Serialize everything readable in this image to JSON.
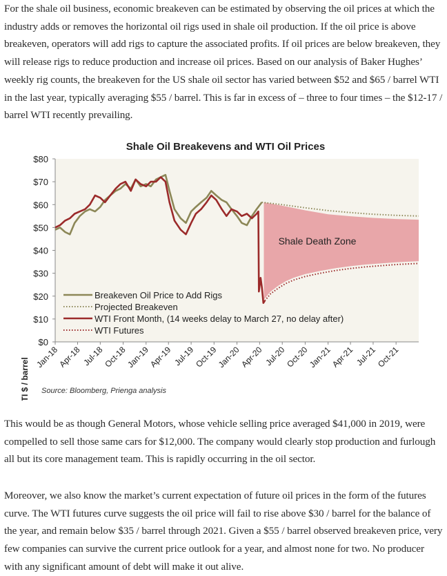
{
  "paragraphs": [
    "For the shale oil business, economic breakeven can be estimated by observing the oil prices at which the industry adds or removes the horizontal oil rigs used in shale oil production.  If the oil price is above breakeven, operators will add rigs to capture the associated profits.  If oil prices are below breakeven, they will release rigs to reduce production and increase oil prices.  Based on our analysis of Baker Hughes’ weekly rig counts, the breakeven for the US shale oil sector has varied between $52 and $65 / barrel WTI in the last year, typically averaging $55 / barrel.    This is far in excess of – three to four times – the $12-17 / barrel WTI recently prevailing.",
    "This would be as though General Motors, whose vehicle selling price averaged $41,000 in 2019, were compelled to sell those same cars for $12,000.  The company would clearly stop production and furlough all but its core management team.  This is rapidly occurring in the oil sector.",
    "Moreover, we also know the market’s current expectation of future oil prices in the form of the futures curve.  The WTI futures curve suggests the oil price will fail to rise above $30 / barrel for the balance of the year, and remain below $35 / barrel through 2021.  Given a $55 / barrel observed breakeven price, very few companies can survive the current price outlook for a year, and almost none for two.  No producer with any significant amount of debt will make it out alive."
  ],
  "chart_data": {
    "type": "line",
    "title": "Shale Oil Breakevens and WTI Oil Prices",
    "ylabel": "WTI $ / barrel",
    "xlabel": "",
    "ylim": [
      0,
      80
    ],
    "y_ticks": [
      "$0",
      "$10",
      "$20",
      "$30",
      "$40",
      "$50",
      "$60",
      "$70",
      "$80"
    ],
    "x_ticks": [
      "Jan-18",
      "Apr-18",
      "Jul-18",
      "Oct-18",
      "Jan-19",
      "Apr-19",
      "Jul-19",
      "Oct-19",
      "Jan-20",
      "Apr-20",
      "Jul-20",
      "Oct-20",
      "Jan-21",
      "Apr-21",
      "Jul-21",
      "Oct-21"
    ],
    "x_range": [
      "2018-01-01",
      "2021-12-31"
    ],
    "annotation": "Shale Death Zone",
    "source": "Source: Bloomberg, Prienga analysis",
    "legend_position": "bottom-left",
    "series": [
      {
        "name": "Breakeven Oil Price to Add Rigs",
        "color": "#8c8757",
        "style": "solid",
        "points": [
          [
            "2018-01-01",
            49
          ],
          [
            "2018-01-20",
            50
          ],
          [
            "2018-02-10",
            48
          ],
          [
            "2018-03-01",
            47
          ],
          [
            "2018-03-20",
            52
          ],
          [
            "2018-04-10",
            55
          ],
          [
            "2018-05-01",
            57
          ],
          [
            "2018-05-20",
            58
          ],
          [
            "2018-06-10",
            57
          ],
          [
            "2018-07-01",
            59
          ],
          [
            "2018-07-20",
            62
          ],
          [
            "2018-08-10",
            64
          ],
          [
            "2018-09-01",
            66
          ],
          [
            "2018-09-20",
            67
          ],
          [
            "2018-10-10",
            69
          ],
          [
            "2018-11-01",
            67
          ],
          [
            "2018-11-20",
            71
          ],
          [
            "2018-12-10",
            68
          ],
          [
            "2019-01-01",
            69
          ],
          [
            "2019-01-20",
            68
          ],
          [
            "2019-02-10",
            71
          ],
          [
            "2019-03-01",
            72
          ],
          [
            "2019-03-20",
            73
          ],
          [
            "2019-04-05",
            66
          ],
          [
            "2019-04-25",
            58
          ],
          [
            "2019-05-20",
            54
          ],
          [
            "2019-06-10",
            52
          ],
          [
            "2019-07-01",
            57
          ],
          [
            "2019-07-20",
            59
          ],
          [
            "2019-08-10",
            61
          ],
          [
            "2019-09-01",
            63
          ],
          [
            "2019-09-20",
            66
          ],
          [
            "2019-10-10",
            64
          ],
          [
            "2019-11-01",
            62
          ],
          [
            "2019-11-20",
            61
          ],
          [
            "2019-12-10",
            58
          ],
          [
            "2020-01-01",
            55
          ],
          [
            "2020-01-20",
            52
          ],
          [
            "2020-02-10",
            51
          ],
          [
            "2020-03-01",
            55
          ],
          [
            "2020-03-20",
            58
          ],
          [
            "2020-04-10",
            61
          ]
        ]
      },
      {
        "name": "Projected Breakeven",
        "color": "#8c8757",
        "style": "dotted",
        "points": [
          [
            "2020-04-10",
            61
          ],
          [
            "2020-07-01",
            60
          ],
          [
            "2020-10-01",
            58.6
          ],
          [
            "2021-01-01",
            57.4
          ],
          [
            "2021-04-01",
            56.5
          ],
          [
            "2021-07-01",
            55.8
          ],
          [
            "2021-10-01",
            55.3
          ],
          [
            "2021-12-31",
            55.0
          ]
        ]
      },
      {
        "name": "WTI Front Month, (14 weeks delay to March 27, no delay after)",
        "color": "#9b2a2a",
        "style": "solid",
        "points": [
          [
            "2018-01-01",
            50
          ],
          [
            "2018-01-20",
            51
          ],
          [
            "2018-02-10",
            53
          ],
          [
            "2018-03-01",
            54
          ],
          [
            "2018-03-20",
            56
          ],
          [
            "2018-04-10",
            57
          ],
          [
            "2018-05-01",
            58
          ],
          [
            "2018-05-20",
            60
          ],
          [
            "2018-06-10",
            64
          ],
          [
            "2018-07-01",
            63
          ],
          [
            "2018-07-20",
            61
          ],
          [
            "2018-08-10",
            64
          ],
          [
            "2018-09-01",
            67
          ],
          [
            "2018-09-20",
            69
          ],
          [
            "2018-10-10",
            70
          ],
          [
            "2018-11-01",
            66
          ],
          [
            "2018-11-20",
            71
          ],
          [
            "2018-12-10",
            69
          ],
          [
            "2019-01-01",
            68
          ],
          [
            "2019-01-20",
            70
          ],
          [
            "2019-02-10",
            70
          ],
          [
            "2019-03-01",
            72
          ],
          [
            "2019-03-20",
            70
          ],
          [
            "2019-04-05",
            61
          ],
          [
            "2019-04-25",
            53
          ],
          [
            "2019-05-20",
            49
          ],
          [
            "2019-06-10",
            47
          ],
          [
            "2019-07-01",
            52
          ],
          [
            "2019-07-20",
            56
          ],
          [
            "2019-08-10",
            58
          ],
          [
            "2019-09-01",
            61
          ],
          [
            "2019-09-20",
            64
          ],
          [
            "2019-10-10",
            62
          ],
          [
            "2019-11-01",
            58
          ],
          [
            "2019-11-20",
            55
          ],
          [
            "2019-12-10",
            58
          ],
          [
            "2020-01-01",
            57
          ],
          [
            "2020-01-20",
            55
          ],
          [
            "2020-02-10",
            56
          ],
          [
            "2020-03-01",
            54
          ],
          [
            "2020-03-20",
            56
          ],
          [
            "2020-03-27",
            57
          ],
          [
            "2020-03-29",
            22
          ],
          [
            "2020-04-05",
            28
          ],
          [
            "2020-04-10",
            24
          ],
          [
            "2020-04-16",
            17
          ],
          [
            "2020-04-22",
            18
          ]
        ]
      },
      {
        "name": "WTI Futures",
        "color": "#9b2a2a",
        "style": "dotted",
        "points": [
          [
            "2020-04-22",
            18
          ],
          [
            "2020-05-15",
            21
          ],
          [
            "2020-06-15",
            23.5
          ],
          [
            "2020-07-15",
            25.5
          ],
          [
            "2020-08-15",
            27
          ],
          [
            "2020-10-01",
            28.6
          ],
          [
            "2020-12-01",
            30
          ],
          [
            "2021-02-01",
            31.2
          ],
          [
            "2021-04-01",
            32.1
          ],
          [
            "2021-06-01",
            32.8
          ],
          [
            "2021-08-01",
            33.3
          ],
          [
            "2021-10-01",
            33.8
          ],
          [
            "2021-12-31",
            34.3
          ]
        ]
      }
    ],
    "shaded_zone": {
      "fill": "#e8a6a9",
      "start": "2020-04-18",
      "upper": [
        [
          "2020-04-18",
          61
        ],
        [
          "2020-07-01",
          59.5
        ],
        [
          "2020-10-01",
          57.5
        ],
        [
          "2021-01-01",
          55.8
        ],
        [
          "2021-04-01",
          54.9
        ],
        [
          "2021-07-01",
          54.2
        ],
        [
          "2021-10-01",
          53.7
        ],
        [
          "2021-12-31",
          53.4
        ]
      ],
      "lower": [
        [
          "2020-04-18",
          18.5
        ],
        [
          "2020-05-15",
          22
        ],
        [
          "2020-06-15",
          24.5
        ],
        [
          "2020-07-15",
          26.5
        ],
        [
          "2020-08-15",
          28
        ],
        [
          "2020-10-01",
          29.6
        ],
        [
          "2020-12-01",
          31
        ],
        [
          "2021-02-01",
          32.2
        ],
        [
          "2021-04-01",
          33.1
        ],
        [
          "2021-06-01",
          33.8
        ],
        [
          "2021-08-01",
          34.3
        ],
        [
          "2021-10-01",
          34.8
        ],
        [
          "2021-12-31",
          35.3
        ]
      ]
    }
  }
}
